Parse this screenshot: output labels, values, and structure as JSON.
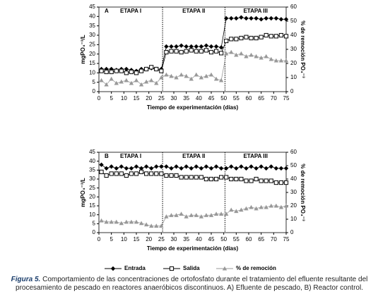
{
  "chart_data": [
    {
      "type": "line",
      "panel": "A",
      "stages": [
        "ETAPA I",
        "ETAPA II",
        "ETAPA III"
      ],
      "dividers": [
        25.5,
        50.5
      ],
      "xlabel": "Tiempo de experimentación (días)",
      "ylabel": "mgPO₄⁻³/L",
      "y2label": "% de remoción PO₄⁻³",
      "xlim": [
        0,
        75
      ],
      "xticks": [
        0,
        5,
        10,
        15,
        20,
        25,
        30,
        35,
        40,
        45,
        50,
        55,
        60,
        65,
        70,
        75
      ],
      "ylim": [
        0,
        45
      ],
      "yticks": [
        0,
        5,
        10,
        15,
        20,
        25,
        30,
        35,
        40,
        45
      ],
      "y2lim": [
        0,
        60
      ],
      "y2ticks": [
        0,
        10,
        20,
        30,
        40,
        50,
        60
      ],
      "x": [
        1,
        3,
        5,
        7,
        9,
        11,
        13,
        15,
        17,
        19,
        21,
        23,
        25,
        27,
        29,
        31,
        33,
        35,
        37,
        39,
        41,
        43,
        45,
        47,
        49,
        51,
        53,
        55,
        57,
        59,
        61,
        63,
        65,
        67,
        69,
        71,
        73,
        75
      ],
      "series": [
        {
          "name": "Entrada",
          "color": "#000000",
          "marker": "diamond",
          "values": [
            12,
            12,
            12,
            11.5,
            12,
            12,
            11.5,
            11,
            12,
            12,
            12.5,
            12,
            12,
            24,
            24,
            24,
            24.5,
            24,
            24,
            24,
            24,
            24.5,
            24,
            24,
            23.5,
            39,
            39,
            39,
            39.5,
            39,
            39,
            39,
            38.5,
            39,
            39,
            39,
            38.5,
            38.5
          ]
        },
        {
          "name": "Salida",
          "color": "#000000",
          "marker": "square",
          "values": [
            11,
            10.5,
            10.5,
            11,
            11,
            10,
            10.5,
            10,
            11,
            12,
            13,
            12,
            11,
            21,
            21.5,
            21.5,
            21,
            21.5,
            22,
            21.5,
            21.5,
            22,
            21,
            21.5,
            20.5,
            27,
            28,
            28,
            28.5,
            29,
            28.5,
            28.5,
            29,
            30,
            29.5,
            29.5,
            30,
            29.5
          ]
        },
        {
          "name": "% de remoción",
          "color": "#999999",
          "marker": "triangle",
          "axis": "y2",
          "values": [
            8,
            5,
            9,
            6,
            7,
            8,
            6,
            8,
            5,
            7,
            8,
            6,
            10,
            12,
            11,
            10,
            12,
            11,
            9,
            12,
            10,
            11,
            12,
            9,
            8,
            27,
            28,
            26,
            27,
            25,
            26,
            25,
            24,
            25,
            23,
            22,
            22,
            22
          ]
        }
      ]
    },
    {
      "type": "line",
      "panel": "B",
      "stages": [
        "ETAPA I",
        "ETAPA II",
        "ETAPA III"
      ],
      "dividers": [
        25.5,
        50.5
      ],
      "xlabel": "Tiempo de experimentación (días)",
      "ylabel": "mgPO₄⁻³/L",
      "y2label": "% de remoción PO₄⁻³",
      "xlim": [
        0,
        75
      ],
      "xticks": [
        0,
        5,
        10,
        15,
        20,
        25,
        30,
        35,
        40,
        45,
        50,
        55,
        60,
        65,
        70,
        75
      ],
      "ylim": [
        0,
        45
      ],
      "yticks": [
        0,
        5,
        10,
        15,
        20,
        25,
        30,
        35,
        40,
        45
      ],
      "y2lim": [
        0,
        60
      ],
      "y2ticks": [
        0,
        10,
        20,
        30,
        40,
        50,
        60
      ],
      "x": [
        1,
        3,
        5,
        7,
        9,
        11,
        13,
        15,
        17,
        19,
        21,
        23,
        25,
        27,
        29,
        31,
        33,
        35,
        37,
        39,
        41,
        43,
        45,
        47,
        49,
        51,
        53,
        55,
        57,
        59,
        61,
        63,
        65,
        67,
        69,
        71,
        73,
        75
      ],
      "series": [
        {
          "name": "Entrada",
          "color": "#000000",
          "marker": "diamond",
          "values": [
            38,
            36,
            37,
            36,
            37,
            36,
            36,
            37,
            36,
            37,
            36,
            37,
            37,
            37,
            36,
            37,
            36,
            37,
            36,
            37,
            36,
            37,
            36,
            37,
            36,
            36,
            37,
            36,
            37,
            36,
            37,
            36,
            37,
            36,
            37,
            36,
            36,
            36
          ]
        },
        {
          "name": "Salida",
          "color": "#000000",
          "marker": "square",
          "values": [
            34,
            32,
            33,
            33,
            33,
            32,
            33,
            33,
            34,
            33,
            33,
            33,
            33,
            32,
            32,
            32,
            31,
            31,
            31,
            31,
            31,
            30,
            30,
            30,
            31,
            31,
            30,
            30,
            30,
            29,
            29,
            30,
            29,
            29,
            29,
            28,
            28,
            28
          ]
        },
        {
          "name": "% de remoción",
          "color": "#999999",
          "marker": "triangle",
          "axis": "y2",
          "values": [
            9,
            8,
            8,
            8,
            7,
            8,
            8,
            8,
            7,
            6,
            5,
            5,
            5,
            12,
            13,
            13,
            14,
            12,
            13,
            13,
            12,
            13,
            13,
            14,
            14,
            14,
            17,
            16,
            17,
            18,
            19,
            18,
            19,
            19,
            20,
            20,
            19,
            20
          ]
        }
      ]
    }
  ],
  "caption": {
    "label": "Figura 5.",
    "text": " Comportamiento de las concentraciones de ortofosfato durante el tratamiento del efluente resultante del procesamiento de pescado en reactores anaeróbicos discontinuos. A) Efluente de pescado, B) Reactor control."
  }
}
